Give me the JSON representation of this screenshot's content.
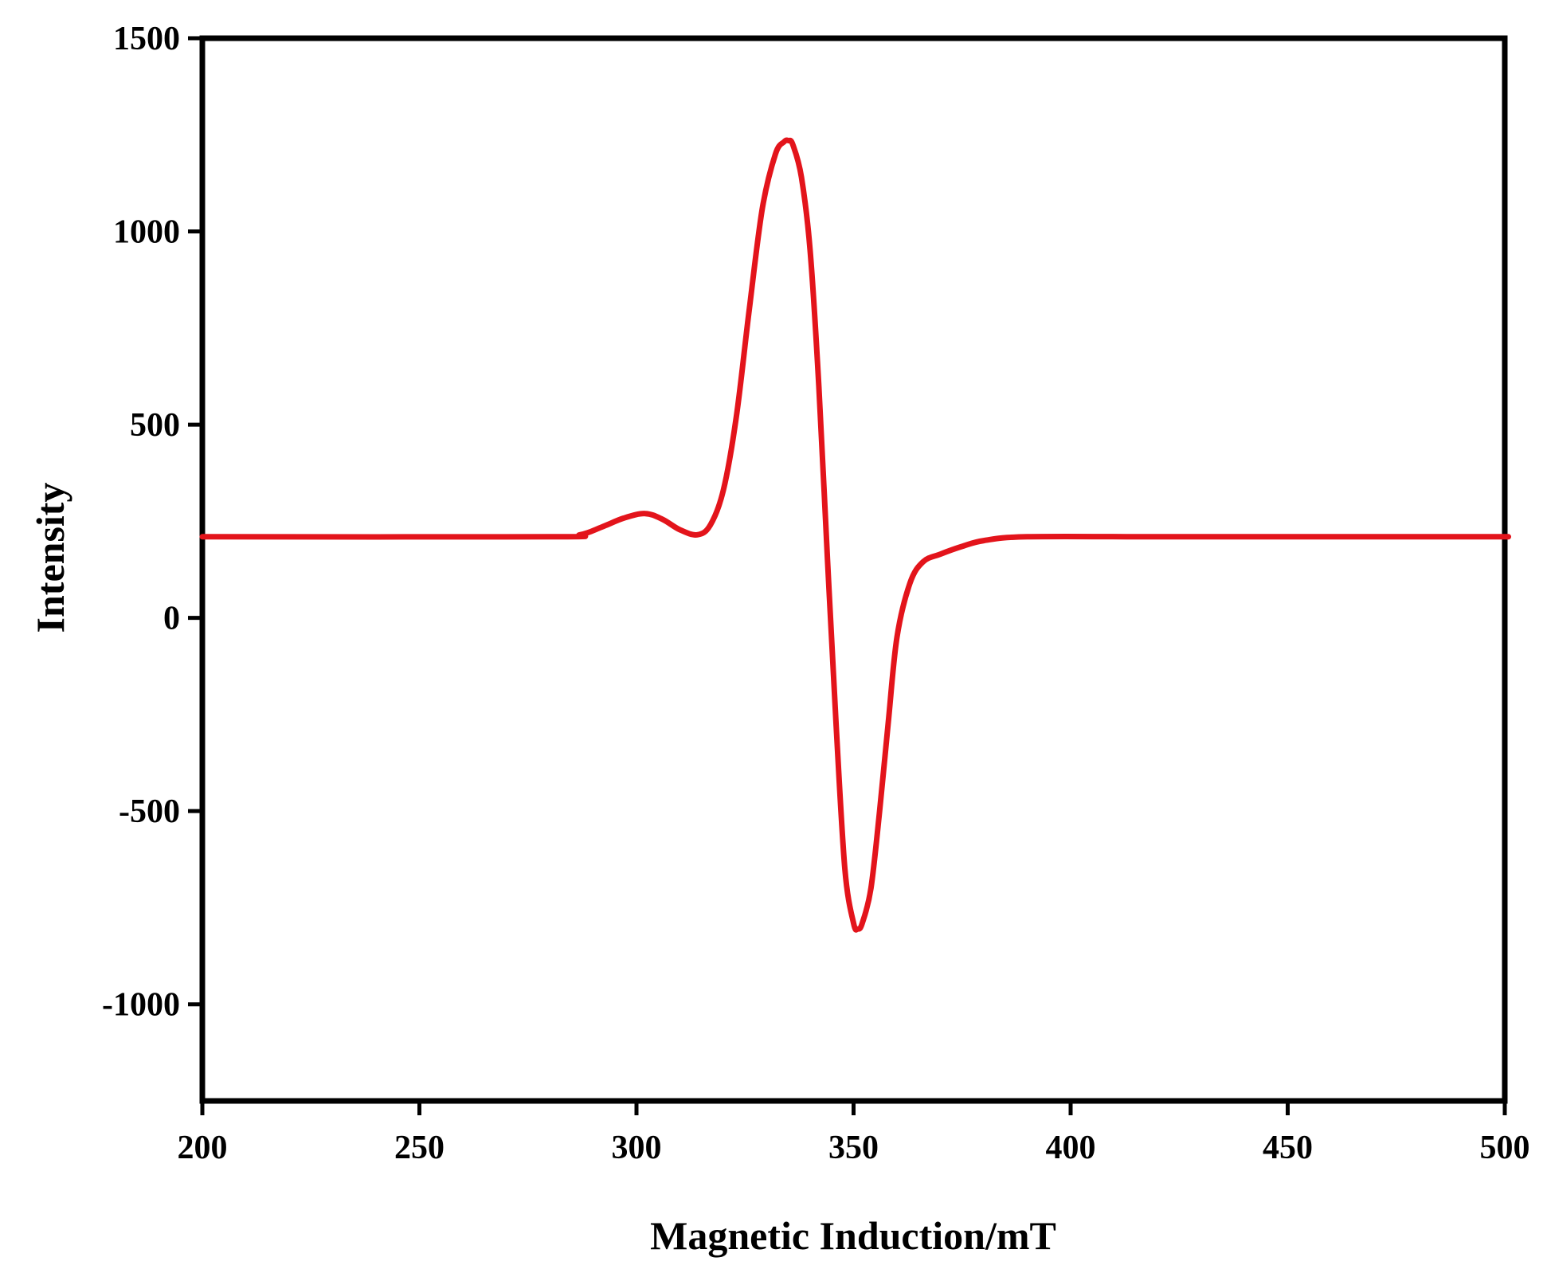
{
  "chart_data": {
    "type": "line",
    "title": "",
    "xlabel": "Magnetic Induction/mT",
    "ylabel": "Intensity",
    "xlim": [
      200,
      500
    ],
    "ylim": [
      -1250,
      1500
    ],
    "xticks": [
      200,
      250,
      300,
      350,
      400,
      450,
      500
    ],
    "yticks": [
      -1000,
      -500,
      0,
      500,
      1000,
      1500
    ],
    "xtick_labels": [
      "200",
      "250",
      "300",
      "350",
      "400",
      "450",
      "500"
    ],
    "ytick_labels": [
      "-1000",
      "-500",
      "0",
      "500",
      "1000",
      "1500"
    ],
    "grid": false,
    "legend": "none",
    "series": [
      {
        "color": "#e3141b",
        "x": [
          200,
          280,
          287,
          292,
          297,
          302,
          306,
          310,
          314,
          317,
          320,
          323,
          326,
          329,
          332,
          334,
          335,
          336,
          338,
          340,
          342,
          344,
          346,
          348,
          350,
          351,
          352,
          354,
          356,
          358,
          360,
          363,
          366,
          370,
          375,
          380,
          390,
          420,
          460,
          497,
          500
        ],
        "y": [
          210,
          210,
          215,
          235,
          258,
          270,
          255,
          228,
          215,
          240,
          330,
          520,
          800,
          1060,
          1200,
          1232,
          1235,
          1225,
          1140,
          950,
          600,
          150,
          -280,
          -650,
          -790,
          -805,
          -790,
          -700,
          -500,
          -270,
          -50,
          90,
          145,
          165,
          185,
          200,
          210,
          210,
          210,
          210,
          210
        ]
      }
    ]
  }
}
